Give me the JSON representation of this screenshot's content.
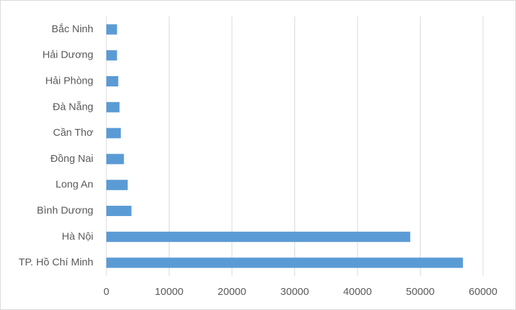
{
  "chart_data": {
    "type": "hbar",
    "categories": [
      "Bắc Ninh",
      "Hải Dương",
      "Hải Phòng",
      "Đà Nẵng",
      "Cần Thơ",
      "Đồng Nai",
      "Long An",
      "Bình Dương",
      "Hà Nội",
      "TP. Hồ Chí Minh"
    ],
    "values": [
      1700,
      1700,
      1900,
      2100,
      2300,
      2800,
      3400,
      4000,
      48400,
      56800
    ],
    "color": "#5b9bd5",
    "xlim": [
      0,
      60000
    ],
    "xticks": [
      0,
      10000,
      20000,
      30000,
      40000,
      50000,
      60000
    ],
    "grid": true
  }
}
